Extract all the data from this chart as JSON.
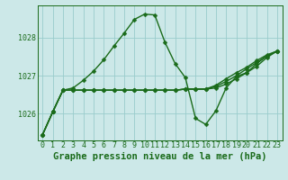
{
  "title": "Graphe pression niveau de la mer (hPa)",
  "background_color": "#cce8e8",
  "grid_color": "#99cccc",
  "line_color": "#1a6b1a",
  "x_min": 0,
  "x_max": 23,
  "y_min": 1025.3,
  "y_max": 1028.85,
  "yticks": [
    1026,
    1027,
    1028
  ],
  "xticks": [
    0,
    1,
    2,
    3,
    4,
    5,
    6,
    7,
    8,
    9,
    10,
    11,
    12,
    13,
    14,
    15,
    16,
    17,
    18,
    19,
    20,
    21,
    22,
    23
  ],
  "line1_x": [
    0,
    1,
    2,
    3,
    4,
    5,
    6,
    7,
    8,
    9,
    10,
    11,
    12,
    13,
    14,
    15,
    16,
    17,
    18,
    19,
    20,
    21,
    22,
    23
  ],
  "line1_y": [
    1025.45,
    1026.05,
    1026.62,
    1026.68,
    1026.88,
    1027.12,
    1027.42,
    1027.78,
    1028.12,
    1028.48,
    1028.62,
    1028.6,
    1027.88,
    1027.32,
    1026.95,
    1025.88,
    1025.72,
    1026.08,
    1026.68,
    1026.98,
    1027.08,
    1027.32,
    1027.52,
    1027.65
  ],
  "line2_x": [
    0,
    1,
    2,
    3,
    4,
    5,
    6,
    7,
    8,
    9,
    10,
    11,
    12,
    13,
    14,
    15,
    16,
    17,
    18,
    19,
    20,
    21,
    22,
    23
  ],
  "line2_y": [
    1025.45,
    1026.05,
    1026.62,
    1026.62,
    1026.62,
    1026.62,
    1026.62,
    1026.62,
    1026.62,
    1026.62,
    1026.62,
    1026.62,
    1026.62,
    1026.62,
    1026.65,
    1026.65,
    1026.65,
    1026.68,
    1026.78,
    1026.92,
    1027.08,
    1027.25,
    1027.48,
    1027.65
  ],
  "line3_x": [
    0,
    1,
    2,
    3,
    4,
    5,
    6,
    7,
    8,
    9,
    10,
    11,
    12,
    13,
    14,
    15,
    16,
    17,
    18,
    19,
    20,
    21,
    22,
    23
  ],
  "line3_y": [
    1025.45,
    1026.05,
    1026.62,
    1026.62,
    1026.62,
    1026.62,
    1026.62,
    1026.62,
    1026.62,
    1026.62,
    1026.62,
    1026.62,
    1026.62,
    1026.62,
    1026.65,
    1026.65,
    1026.65,
    1026.72,
    1026.85,
    1027.0,
    1027.18,
    1027.35,
    1027.52,
    1027.65
  ],
  "line4_x": [
    0,
    1,
    2,
    3,
    4,
    5,
    6,
    7,
    8,
    9,
    10,
    11,
    12,
    13,
    14,
    15,
    16,
    17,
    18,
    19,
    20,
    21,
    22,
    23
  ],
  "line4_y": [
    1025.45,
    1026.05,
    1026.62,
    1026.62,
    1026.62,
    1026.62,
    1026.62,
    1026.62,
    1026.62,
    1026.62,
    1026.62,
    1026.62,
    1026.62,
    1026.62,
    1026.65,
    1026.65,
    1026.65,
    1026.75,
    1026.92,
    1027.08,
    1027.22,
    1027.4,
    1027.55,
    1027.65
  ],
  "marker_size": 2.5,
  "line_width": 1.0,
  "title_fontsize": 7.5,
  "tick_fontsize": 6.0
}
